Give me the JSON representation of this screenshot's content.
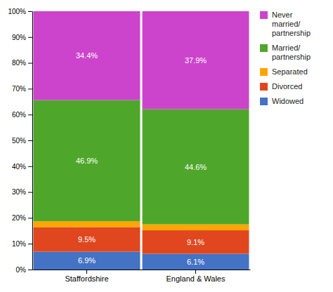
{
  "chart_data": {
    "type": "bar",
    "stacked": true,
    "categories": [
      "Staffordshire",
      "England & Wales"
    ],
    "series": [
      {
        "name": "Widowed",
        "color": "#4472c4",
        "values": [
          6.9,
          6.1
        ],
        "value_labels": [
          "6.9%",
          "6.1%"
        ]
      },
      {
        "name": "Divorced",
        "color": "#e0471f",
        "values": [
          9.5,
          9.1
        ],
        "value_labels": [
          "9.5%",
          "9.1%"
        ]
      },
      {
        "name": "Separated",
        "color": "#ffa500",
        "values": [
          2.3,
          2.3
        ]
      },
      {
        "name": "Married/\npartnership",
        "color": "#4ea72a",
        "values": [
          46.9,
          44.6
        ],
        "value_labels": [
          "46.9%",
          "44.6%"
        ]
      },
      {
        "name": "Never\nmarried/\npartnership",
        "color": "#cc44cc",
        "values": [
          34.4,
          37.9
        ],
        "value_labels": [
          "34.4%",
          "37.9%"
        ]
      }
    ],
    "ylim": [
      0,
      100
    ],
    "yticks": [
      {
        "value": 0,
        "label": "0%"
      },
      {
        "value": 10,
        "label": "10%"
      },
      {
        "value": 20,
        "label": "20%"
      },
      {
        "value": 30,
        "label": "30%"
      },
      {
        "value": 40,
        "label": "40%"
      },
      {
        "value": 50,
        "label": "50%"
      },
      {
        "value": 60,
        "label": "60%"
      },
      {
        "value": 70,
        "label": "70%"
      },
      {
        "value": 80,
        "label": "80%"
      },
      {
        "value": 90,
        "label": "90%"
      },
      {
        "value": 100,
        "label": "100%"
      }
    ],
    "data_labels": true,
    "grid": false,
    "legend": "right"
  }
}
